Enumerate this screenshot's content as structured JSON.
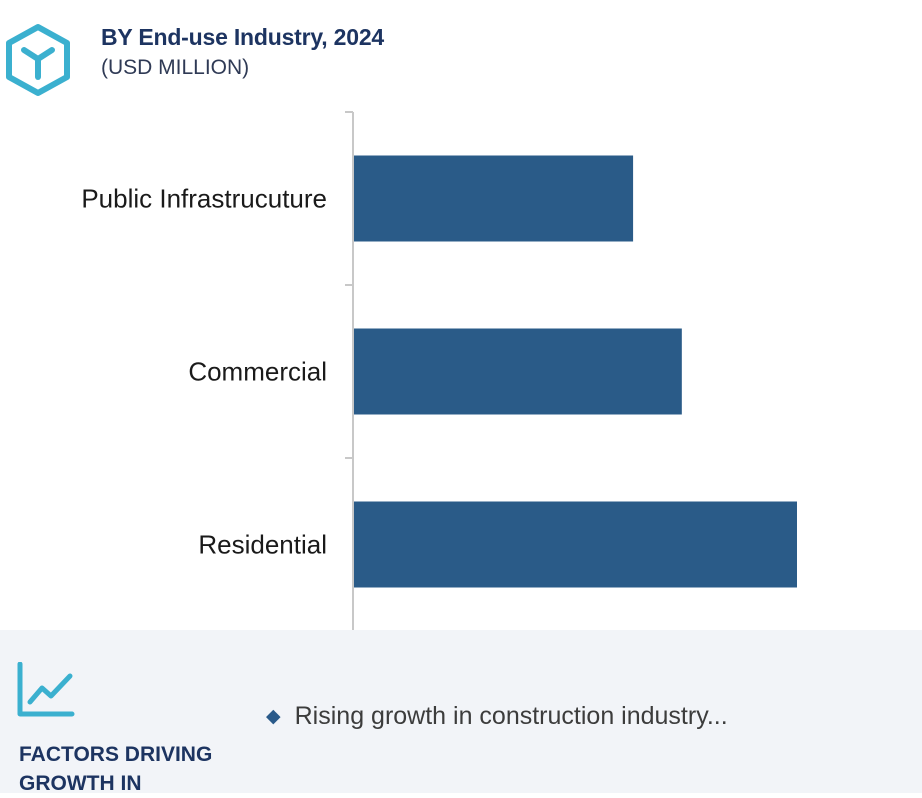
{
  "header": {
    "title": "BY End-use Industry, 2024",
    "subtitle": "(USD MILLION)",
    "logo_icon": "cube-hexagon-icon"
  },
  "colors": {
    "bar": "#2a5b88",
    "title": "#1d3461",
    "logo": "#3bb0cf",
    "footer_bg": "#f2f4f8",
    "axis": "#c8c8c8"
  },
  "chart_data": {
    "type": "bar",
    "orientation": "horizontal",
    "categories": [
      "Public Infrastrucuture",
      "Commercial",
      "Residential"
    ],
    "values": [
      63,
      74,
      100
    ],
    "xlim": [
      0,
      100
    ],
    "grid": false,
    "legend": "none",
    "title": "",
    "xlabel": "",
    "ylabel": ""
  },
  "footer": {
    "trend_icon": "line-chart-icon",
    "factors_title": "FACTORS DRIVING GROWTH IN",
    "bullet_icon": "diamond-icon",
    "bullet_text": "Rising growth in construction industry..."
  }
}
